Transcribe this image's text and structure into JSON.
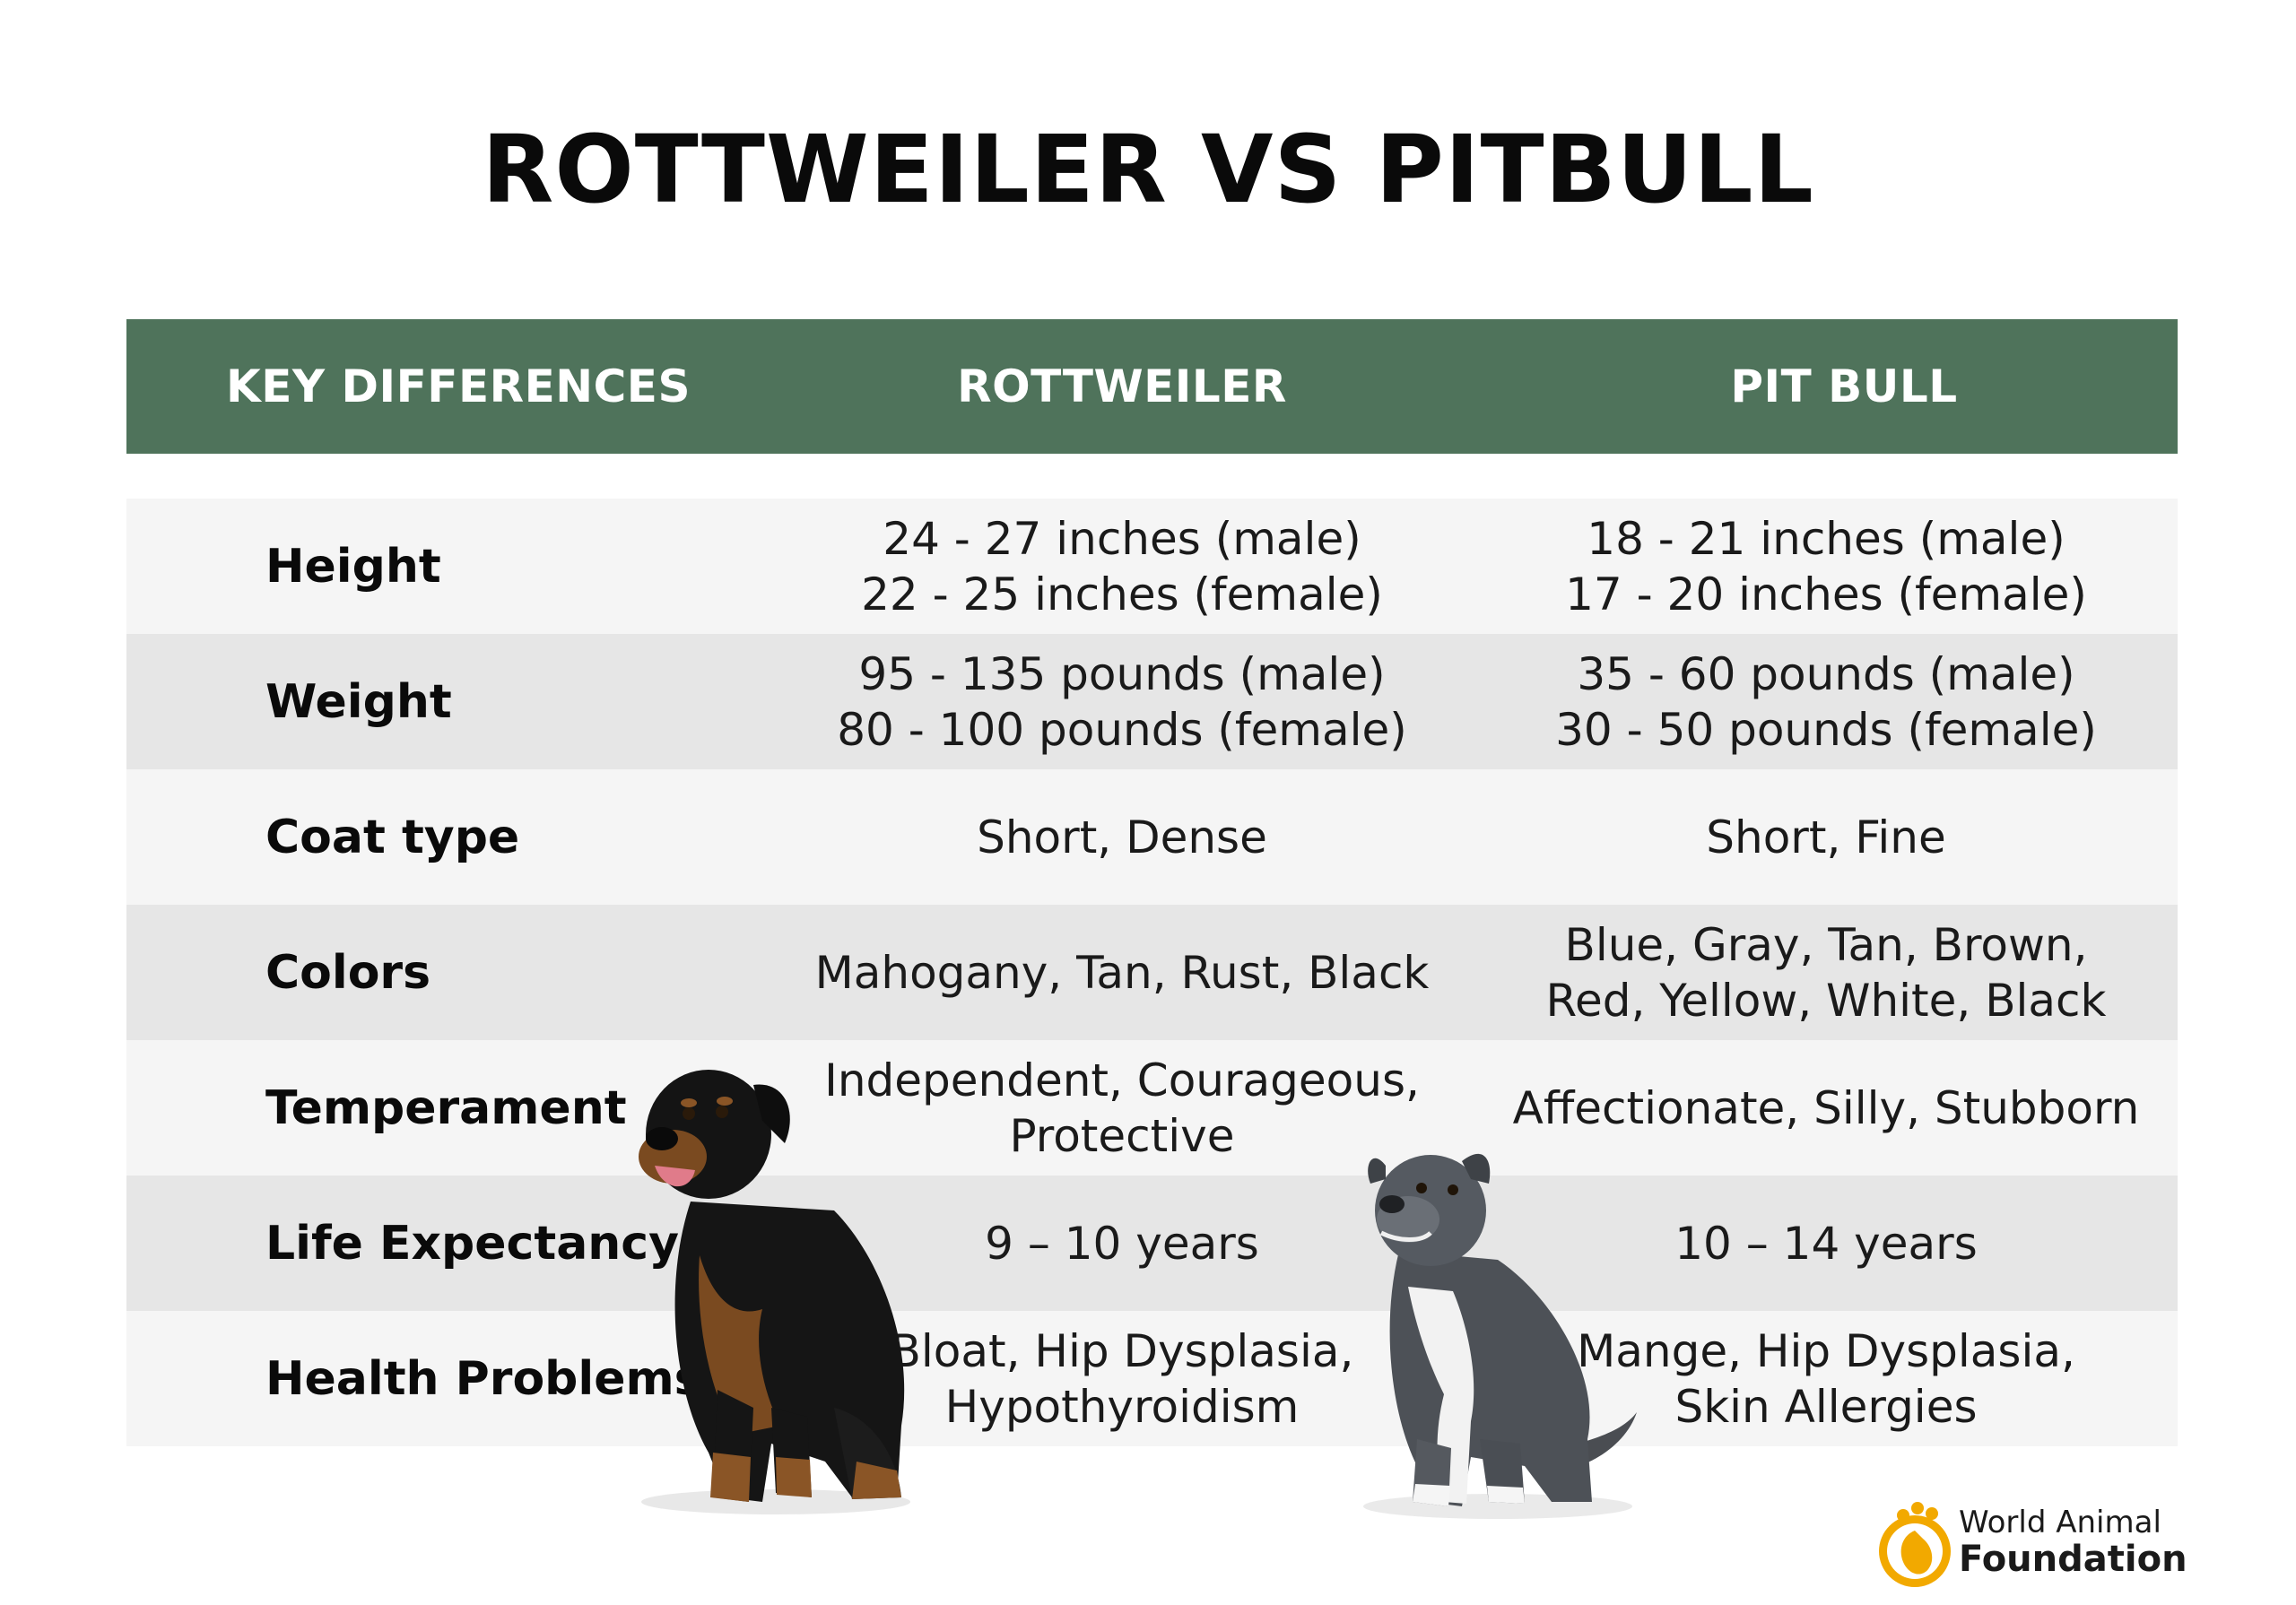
{
  "title": "ROTTWEILER VS PITBULL",
  "table": {
    "headers": [
      "KEY DIFFERENCES",
      "ROTTWEILER",
      "PIT BULL"
    ],
    "rows": [
      {
        "label": "Height",
        "rottweiler": [
          "24 - 27 inches (male)",
          "22 - 25 inches (female)"
        ],
        "pitbull": [
          "18 - 21 inches (male)",
          "17 - 20 inches (female)"
        ]
      },
      {
        "label": "Weight",
        "rottweiler": [
          "95 - 135 pounds (male)",
          "80 - 100 pounds (female)"
        ],
        "pitbull": [
          "35 - 60 pounds (male)",
          "30 - 50 pounds (female)"
        ]
      },
      {
        "label": "Coat type",
        "rottweiler": [
          "Short, Dense"
        ],
        "pitbull": [
          "Short, Fine"
        ]
      },
      {
        "label": "Colors",
        "rottweiler": [
          "Mahogany, Tan, Rust, Black"
        ],
        "pitbull": [
          "Blue, Gray, Tan, Brown,",
          "Red, Yellow, White, Black"
        ]
      },
      {
        "label": "Temperament",
        "rottweiler": [
          "Independent, Courageous,",
          "Protective"
        ],
        "pitbull": [
          "Affectionate, Silly, Stubborn"
        ]
      },
      {
        "label": "Life Expectancy",
        "rottweiler": [
          "9 – 10 years"
        ],
        "pitbull": [
          "10 – 14 years"
        ]
      },
      {
        "label": "Health Problems",
        "rottweiler": [
          "Bloat, Hip Dysplasia,",
          "Hypothyroidism"
        ],
        "pitbull": [
          "Mange, Hip Dysplasia,",
          "Skin Allergies"
        ]
      }
    ]
  },
  "logo": {
    "line1": "World Animal",
    "line2": "Foundation"
  },
  "colors": {
    "header_bg": "#4f735b",
    "row_light": "#f5f5f5",
    "row_dark": "#e6e6e6",
    "logo_accent": "#f2a900"
  },
  "images": {
    "rottweiler": "rottweiler-dog-photo",
    "pitbull": "pitbull-dog-photo"
  }
}
